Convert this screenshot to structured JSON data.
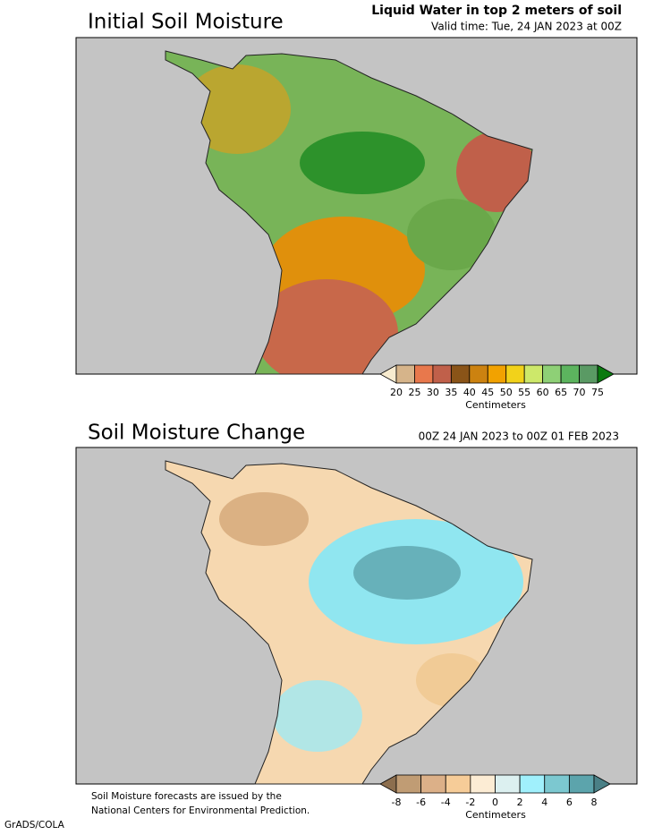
{
  "panels": [
    {
      "title": "Initial Soil Moisture",
      "header": [
        "Liquid Water in top 2 meters of soil",
        "Valid time: Tue, 24 JAN 2023 at 00Z"
      ],
      "colorbar": {
        "labels": [
          20,
          25,
          30,
          35,
          40,
          45,
          50,
          55,
          60,
          65,
          70,
          75
        ],
        "colors": [
          "#f7ebcf",
          "#d6b48a",
          "#e8784c",
          "#c0604a",
          "#8a5418",
          "#cc8210",
          "#f2a200",
          "#f2d21a",
          "#cde86a",
          "#8ed076",
          "#5cb45e",
          "#5a9a64",
          "#0a7a10"
        ],
        "unit": "Centimeters"
      }
    },
    {
      "title": "Soil Moisture Change",
      "header": [
        "00Z 24 JAN 2023 to 00Z 01 FEB 2023"
      ],
      "colorbar": {
        "labels": [
          -8,
          -6,
          -4,
          -2,
          0,
          2,
          4,
          6,
          8
        ],
        "colors": [
          "#8c6e4e",
          "#c09c74",
          "#dcb088",
          "#f6cc98",
          "#fcecd4",
          "#dcf0f0",
          "#a0f0fc",
          "#7cc8d0",
          "#5ca4ac",
          "#4a8086"
        ],
        "unit": "Centimeters"
      }
    }
  ],
  "footnote": [
    "Soil Moisture forecasts are issued by the",
    "National Centers for Environmental Prediction."
  ],
  "credit": "GrADS/COLA"
}
